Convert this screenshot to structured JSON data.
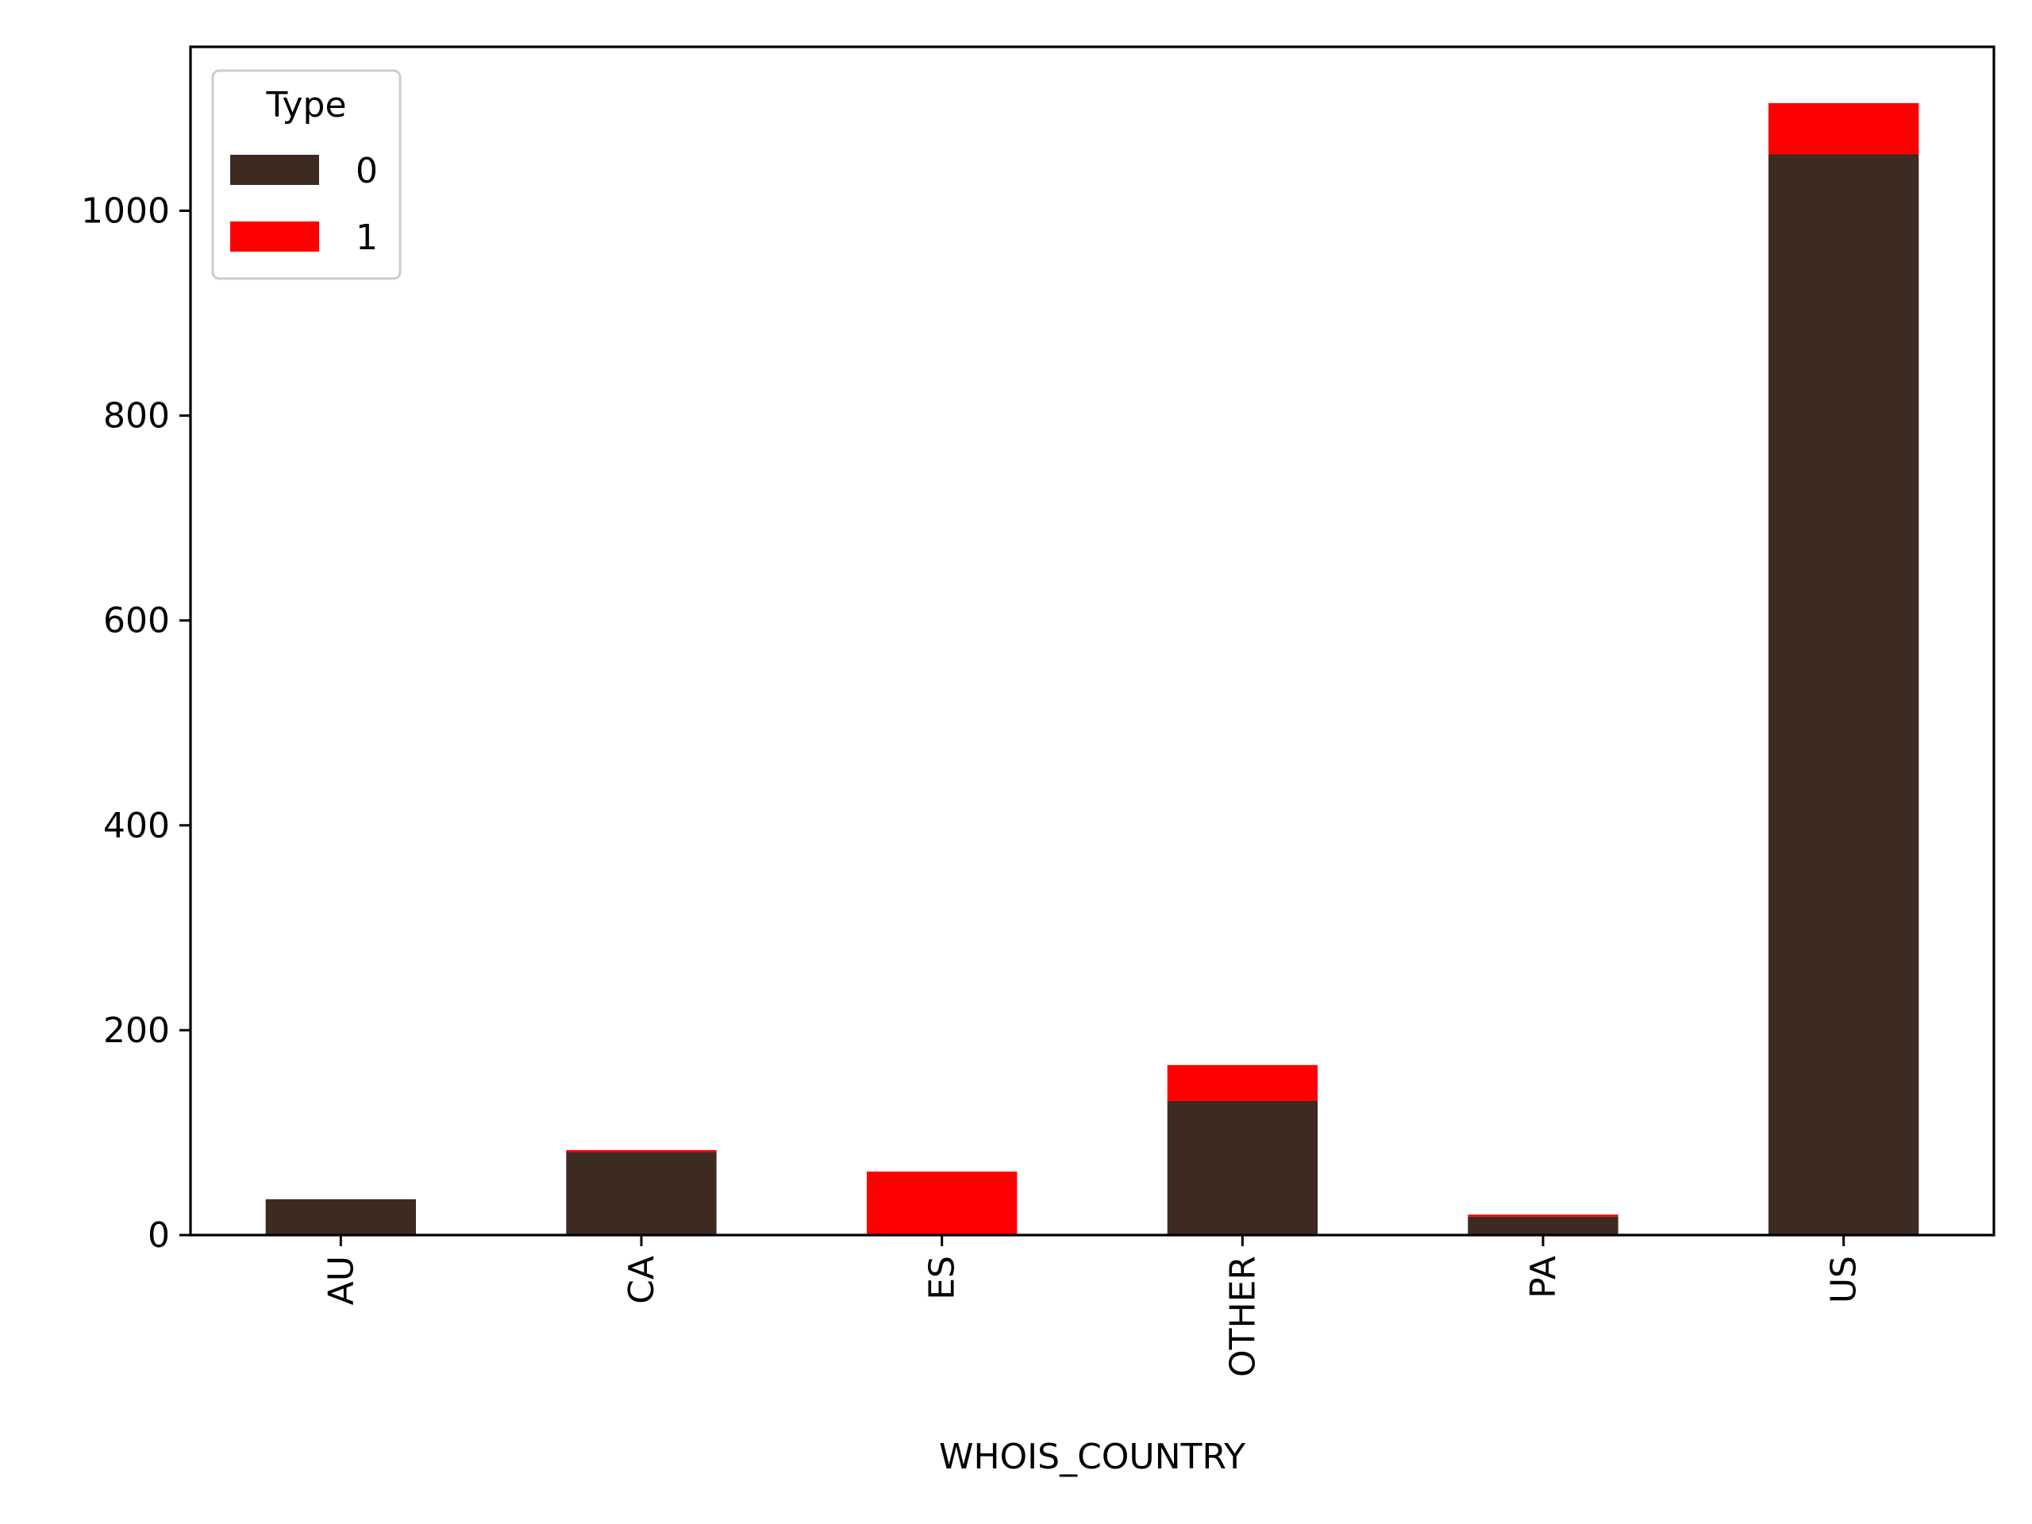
{
  "chart_data": {
    "type": "bar",
    "stacked": true,
    "title": "",
    "xlabel": "WHOIS_COUNTRY",
    "ylabel": "",
    "categories": [
      "AU",
      "CA",
      "ES",
      "OTHER",
      "PA",
      "US"
    ],
    "series": [
      {
        "name": "0",
        "color": "#3d2b22",
        "values": [
          35,
          81,
          0,
          131,
          18,
          1055
        ]
      },
      {
        "name": "1",
        "color": "#ff0000",
        "values": [
          0,
          2,
          62,
          35,
          2,
          50
        ]
      }
    ],
    "ylim": [
      0,
      1160
    ],
    "yticks": [
      0,
      200,
      400,
      600,
      800,
      1000
    ],
    "xtick_rotation": "vertical",
    "grid": false,
    "legend": {
      "title": "Type",
      "placement": "top-left",
      "entries": [
        "0",
        "1"
      ]
    }
  }
}
